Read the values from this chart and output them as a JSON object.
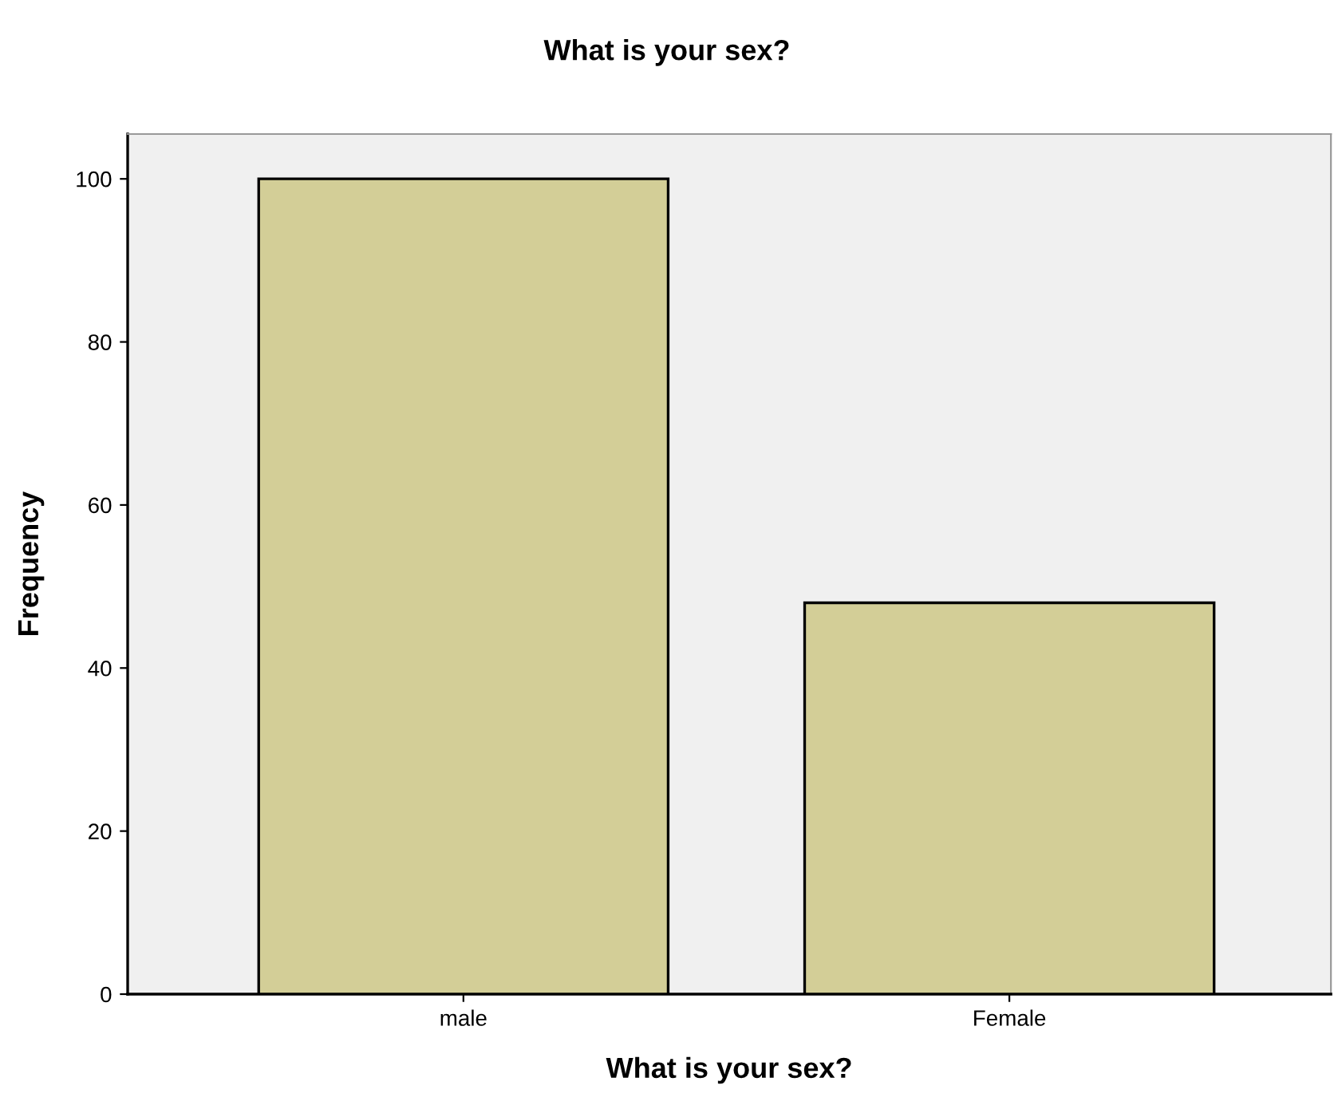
{
  "chart_data": {
    "type": "bar",
    "title": "What is your sex?",
    "xlabel": "What is your sex?",
    "ylabel": "Frequency",
    "categories": [
      "male",
      "Female"
    ],
    "values": [
      100,
      48
    ],
    "color": "#d3ce97",
    "ylim": [
      0,
      105.5
    ],
    "yticks": [
      0,
      20,
      40,
      60,
      80,
      100
    ],
    "grid": false
  }
}
